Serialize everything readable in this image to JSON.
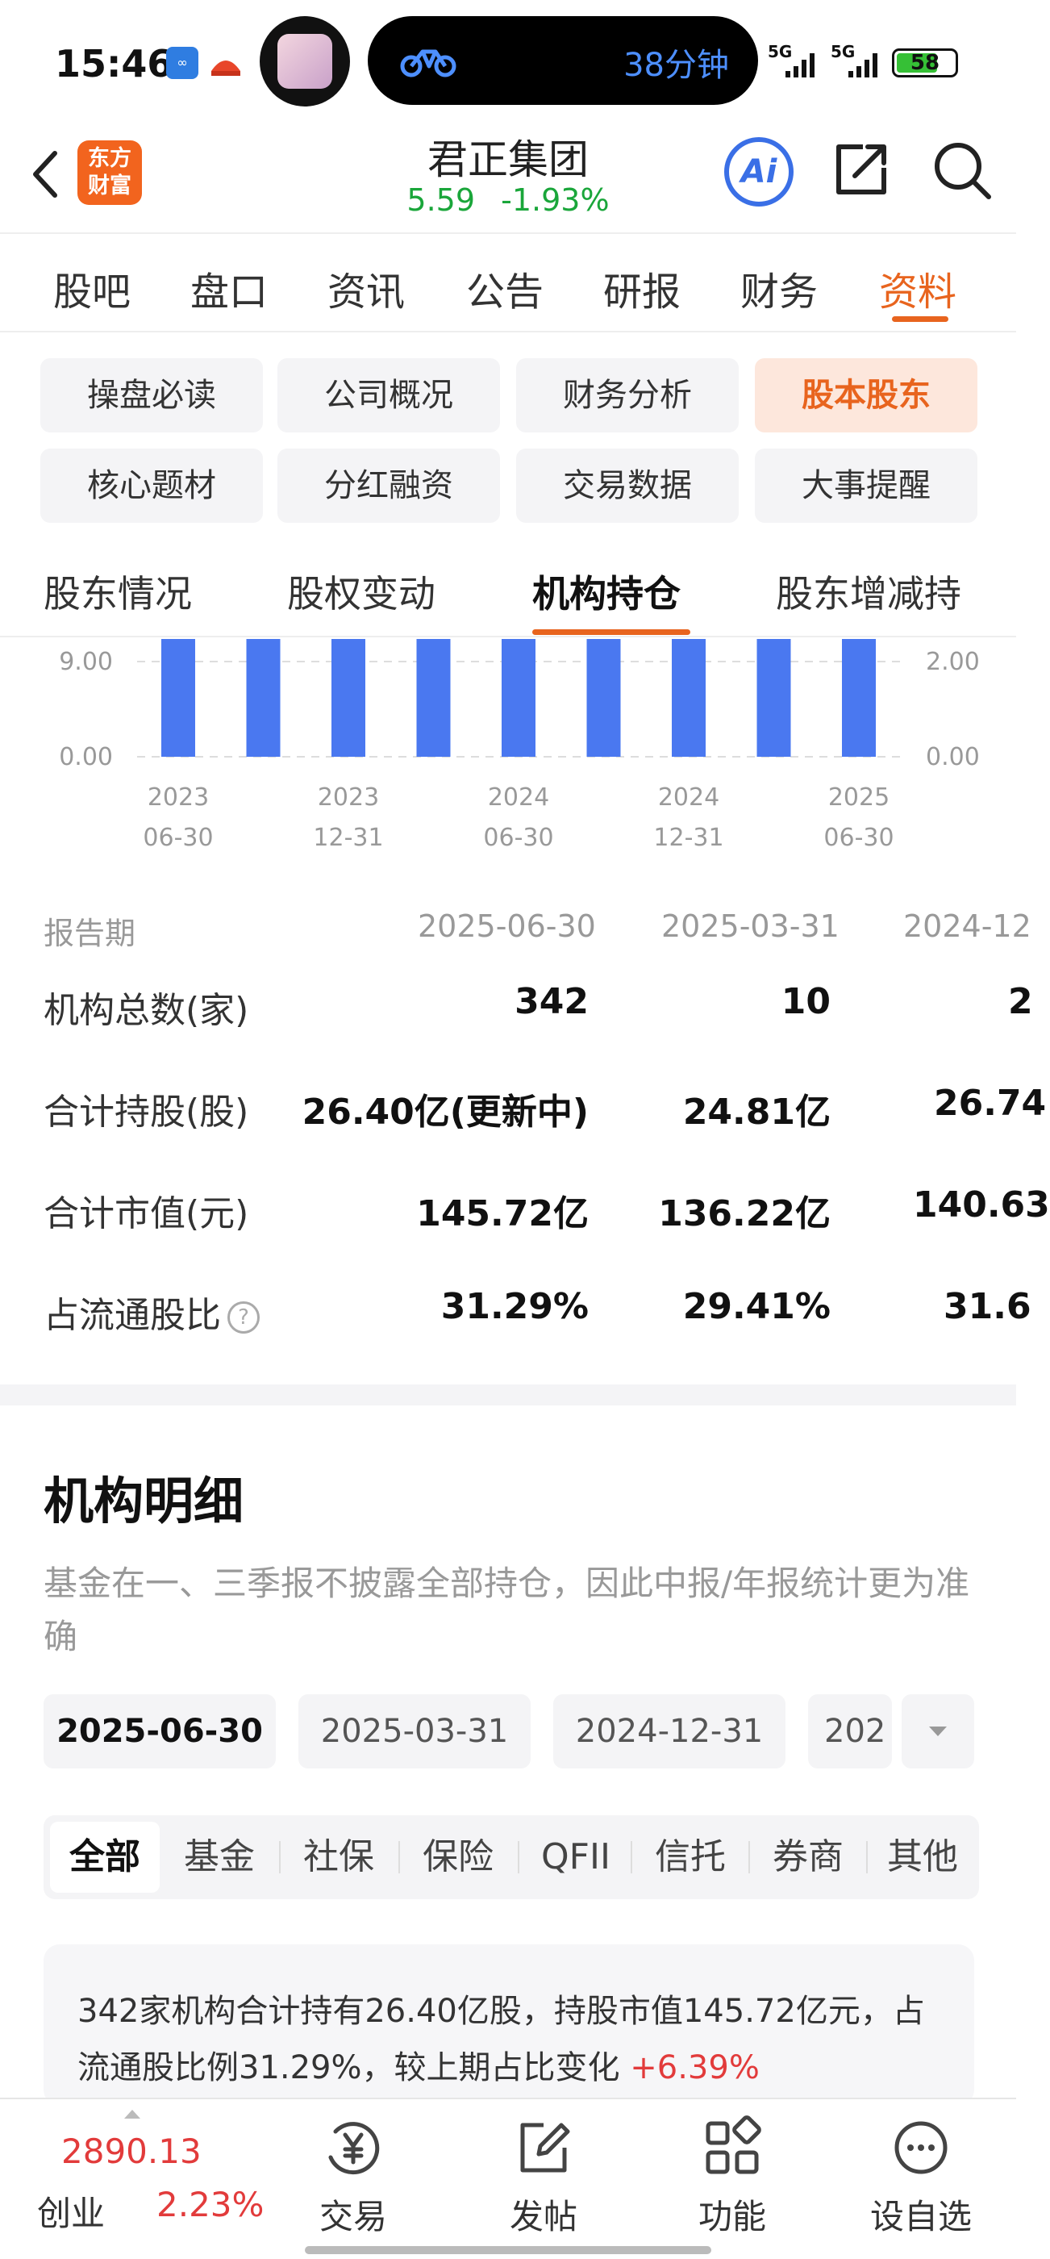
{
  "status_bar": {
    "time": "15:46",
    "island_text": "38分钟",
    "signal_1": "5G",
    "signal_2": "5G",
    "battery": "58"
  },
  "header": {
    "brand_line1": "东方",
    "brand_line2": "财富",
    "stock_name": "君正集团",
    "price": "5.59",
    "change_pct": "-1.93%",
    "ai_label": "Ai"
  },
  "main_tabs": [
    {
      "label": "股吧"
    },
    {
      "label": "盘口"
    },
    {
      "label": "资讯"
    },
    {
      "label": "公告"
    },
    {
      "label": "研报"
    },
    {
      "label": "财务"
    },
    {
      "label": "资料"
    }
  ],
  "sub_grid": [
    {
      "label": "操盘必读"
    },
    {
      "label": "公司概况"
    },
    {
      "label": "财务分析"
    },
    {
      "label": "股本股东"
    },
    {
      "label": "核心题材"
    },
    {
      "label": "分红融资"
    },
    {
      "label": "交易数据"
    },
    {
      "label": "大事提醒"
    }
  ],
  "sub_tabs": [
    {
      "label": "股东情况"
    },
    {
      "label": "股权变动"
    },
    {
      "label": "机构持仓"
    },
    {
      "label": "股东增减持"
    }
  ],
  "chart_data": {
    "type": "bar",
    "left_axis_ticks": [
      "9.00",
      "0.00"
    ],
    "right_axis_ticks": [
      "2.00",
      "0.00"
    ],
    "x_tick_labels": [
      {
        "year": "2023",
        "date": "06-30"
      },
      {
        "year": "2023",
        "date": "12-31"
      },
      {
        "year": "2024",
        "date": "06-30"
      },
      {
        "year": "2024",
        "date": "12-31"
      },
      {
        "year": "2025",
        "date": "06-30"
      }
    ],
    "bar_count": 9,
    "bar_color": "#4a78f0",
    "note": ""
  },
  "table": {
    "header_label": "报告期",
    "periods": [
      "2025-06-30",
      "2025-03-31",
      "2024-12"
    ],
    "rows": [
      {
        "label": "机构总数(家)",
        "values": [
          "342",
          "10",
          "2"
        ]
      },
      {
        "label": "合计持股(股)",
        "values": [
          "26.40亿(更新中)",
          "24.81亿",
          "26.74"
        ]
      },
      {
        "label": "合计市值(元)",
        "values": [
          "145.72亿",
          "136.22亿",
          "140.63"
        ]
      },
      {
        "label": "占流通股比",
        "values": [
          "31.29%",
          "29.41%",
          "31.6"
        ]
      }
    ]
  },
  "detail": {
    "title": "机构明细",
    "note": "基金在一、三季报不披露全部持仓，因此中报/年报统计更为准确",
    "dates": [
      "2025-06-30",
      "2025-03-31",
      "2024-12-31",
      "202"
    ],
    "categories": [
      "全部",
      "基金",
      "社保",
      "保险",
      "QFII",
      "信托",
      "券商",
      "其他"
    ],
    "summary_text": "342家机构合计持有26.40亿股，持股市值145.72亿元，占流通股比例31.29%，较上期占比变化 ",
    "summary_change": "+6.39%"
  },
  "bottom_nav": {
    "index_value": "2890.13",
    "index_name": "创业",
    "index_change": "2.23%",
    "items": [
      {
        "label": "交易",
        "icon": "yen-circle-icon"
      },
      {
        "label": "发帖",
        "icon": "edit-icon"
      },
      {
        "label": "功能",
        "icon": "grid-icon"
      },
      {
        "label": "设自选",
        "icon": "more-circle-icon"
      }
    ]
  }
}
